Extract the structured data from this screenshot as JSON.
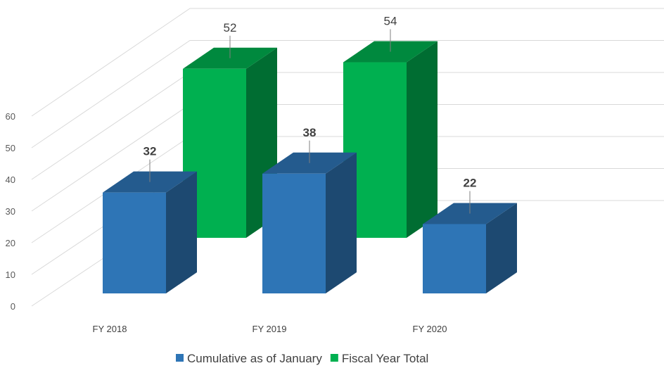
{
  "chart_data": {
    "type": "bar",
    "categories": [
      "FY 2018",
      "FY 2019",
      "FY 2020"
    ],
    "series": [
      {
        "name": "Cumulative as of January",
        "values": [
          32,
          38,
          22
        ],
        "color": "#2E75B6"
      },
      {
        "name": "Fiscal Year Total",
        "values": [
          52,
          54,
          null
        ],
        "color": "#00B050"
      }
    ],
    "y_ticks": [
      0,
      10,
      20,
      30,
      40,
      50,
      60
    ],
    "ylim": [
      0,
      60
    ],
    "grid": true,
    "legend_position": "bottom",
    "projection": "3d"
  }
}
